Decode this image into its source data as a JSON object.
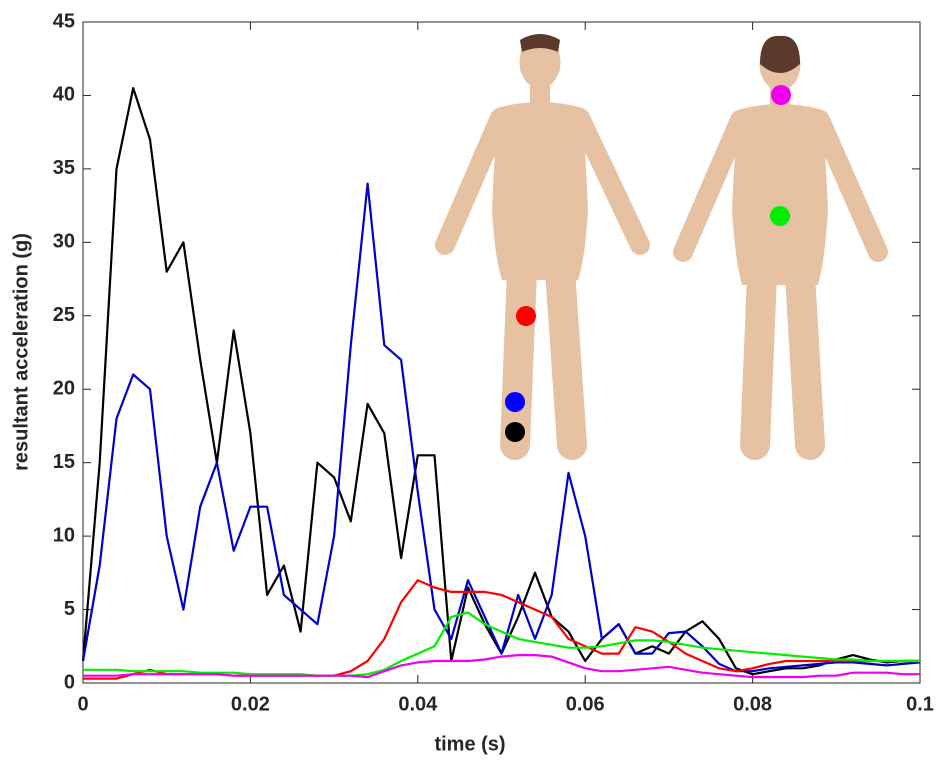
{
  "chart_data": {
    "type": "line",
    "x_label": "time (s)",
    "y_label": "resultant acceleration (g)",
    "x": [
      0,
      0.002,
      0.004,
      0.006,
      0.008,
      0.01,
      0.012,
      0.014,
      0.016,
      0.018,
      0.02,
      0.022,
      0.024,
      0.026,
      0.028,
      0.03,
      0.032,
      0.034,
      0.036,
      0.038,
      0.04,
      0.042,
      0.044,
      0.046,
      0.048,
      0.05,
      0.052,
      0.054,
      0.056,
      0.058,
      0.06,
      0.062,
      0.064,
      0.066,
      0.068,
      0.07,
      0.072,
      0.074,
      0.076,
      0.078,
      0.08,
      0.082,
      0.084,
      0.086,
      0.088,
      0.09,
      0.092,
      0.094,
      0.096,
      0.098,
      0.1
    ],
    "series": [
      {
        "color": "#000000",
        "values": [
          1.5,
          15,
          35,
          40.5,
          37,
          28,
          30,
          22,
          15,
          24,
          17,
          6,
          8,
          3.5,
          15,
          14,
          11,
          19,
          17,
          8.5,
          15.5,
          15.5,
          1.5,
          6.5,
          4,
          2,
          4.5,
          7.5,
          4.5,
          3.5,
          1.5,
          3,
          4,
          2,
          2.5,
          2,
          3.5,
          4.2,
          3,
          1,
          0.6,
          0.8,
          1,
          1,
          1.2,
          1.6,
          1.9,
          1.6,
          1.4,
          1.5,
          1.5
        ]
      },
      {
        "color": "#0000cc",
        "values": [
          1.5,
          8,
          18,
          21,
          20,
          10,
          5,
          12,
          15,
          9,
          12,
          12,
          6,
          5,
          4,
          10,
          23,
          34,
          23,
          22,
          13,
          5,
          3,
          7,
          4.5,
          2,
          6,
          3,
          6,
          14.3,
          10,
          3,
          4,
          2,
          2,
          3.4,
          3.5,
          2.5,
          1.3,
          0.8,
          0.8,
          1,
          1.1,
          1.2,
          1.3,
          1.4,
          1.4,
          1.3,
          1.2,
          1.3,
          1.4
        ]
      },
      {
        "color": "#ff0000",
        "values": [
          0.3,
          0.3,
          0.3,
          0.6,
          0.9,
          0.6,
          0.6,
          0.6,
          0.6,
          0.5,
          0.5,
          0.5,
          0.5,
          0.5,
          0.5,
          0.5,
          0.8,
          1.5,
          3,
          5.5,
          7,
          6.5,
          6.2,
          6.2,
          6.2,
          6,
          5.5,
          5,
          4.5,
          3,
          2.5,
          2,
          2,
          3.8,
          3.5,
          2.8,
          2,
          1.5,
          1,
          0.8,
          1,
          1.3,
          1.5,
          1.5,
          1.5,
          1.5,
          1.5,
          1.5,
          1.5,
          1.5,
          1.5
        ]
      },
      {
        "color": "#00ee00",
        "values": [
          0.9,
          0.9,
          0.9,
          0.8,
          0.8,
          0.8,
          0.8,
          0.7,
          0.7,
          0.7,
          0.6,
          0.6,
          0.6,
          0.6,
          0.5,
          0.5,
          0.5,
          0.6,
          0.9,
          1.5,
          2,
          2.5,
          4.5,
          4.8,
          4,
          3.5,
          3,
          2.8,
          2.6,
          2.4,
          2.4,
          2.5,
          2.7,
          2.9,
          2.9,
          2.8,
          2.6,
          2.4,
          2.3,
          2.2,
          2.1,
          2,
          1.9,
          1.8,
          1.7,
          1.6,
          1.6,
          1.5,
          1.5,
          1.5,
          1.5
        ]
      },
      {
        "color": "#ee00ee",
        "values": [
          0.5,
          0.5,
          0.5,
          0.6,
          0.6,
          0.6,
          0.6,
          0.6,
          0.6,
          0.5,
          0.5,
          0.5,
          0.5,
          0.5,
          0.5,
          0.5,
          0.5,
          0.4,
          0.8,
          1.2,
          1.4,
          1.5,
          1.5,
          1.5,
          1.6,
          1.8,
          1.9,
          1.9,
          1.8,
          1.4,
          1,
          0.8,
          0.8,
          0.9,
          1,
          1.1,
          0.9,
          0.7,
          0.6,
          0.5,
          0.4,
          0.4,
          0.4,
          0.4,
          0.5,
          0.5,
          0.7,
          0.7,
          0.7,
          0.6,
          0.6
        ]
      }
    ],
    "xlim": [
      0,
      0.1
    ],
    "xticks": [
      0,
      0.02,
      0.04,
      0.06,
      0.08,
      0.1
    ],
    "ylim": [
      0,
      45
    ],
    "yticks": [
      0,
      5,
      10,
      15,
      20,
      25,
      30,
      35,
      40,
      45
    ]
  }
}
